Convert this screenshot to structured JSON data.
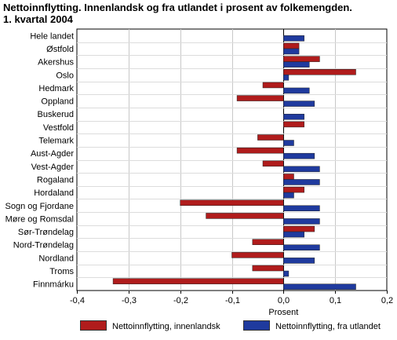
{
  "chart_data": {
    "type": "bar",
    "orientation": "horizontal",
    "title_lines": [
      "Nettoinnflytting. Innenlandsk og fra utlandet i prosent av folkemengden.",
      "1. kvartal 2004"
    ],
    "xlabel": "Prosent",
    "ylabel": "",
    "xlim": [
      -0.4,
      0.2
    ],
    "xticks": [
      -0.4,
      -0.3,
      -0.2,
      -0.1,
      0.0,
      0.1,
      0.2
    ],
    "xtick_labels": [
      "-0,4",
      "-0,3",
      "-0,2",
      "-0,1",
      "0,0",
      "0,1",
      "0,2"
    ],
    "grid": "vertical",
    "legend_position": "bottom",
    "categories": [
      "Hele landet",
      "Østfold",
      "Akershus",
      "Oslo",
      "Hedmark",
      "Oppland",
      "Buskerud",
      "Vestfold",
      "Telemark",
      "Aust-Agder",
      "Vest-Agder",
      "Rogaland",
      "Hordaland",
      "Sogn og Fjordane",
      "Møre og Romsdal",
      "Sør-Trøndelag",
      "Nord-Trøndelag",
      "Nordland",
      "Troms",
      "Finnmárku"
    ],
    "series": [
      {
        "name": "Nettoinnflytting, innenlandsk",
        "color": "#b01c1c",
        "values": [
          0.0,
          0.03,
          0.07,
          0.14,
          -0.04,
          -0.09,
          0.0,
          0.04,
          -0.05,
          -0.09,
          -0.04,
          0.02,
          0.04,
          -0.2,
          -0.15,
          0.06,
          -0.06,
          -0.1,
          -0.06,
          -0.33
        ]
      },
      {
        "name": "Nettoinnflytting, fra utlandet",
        "color": "#1f3a9e",
        "values": [
          0.04,
          0.03,
          0.05,
          0.01,
          0.05,
          0.06,
          0.04,
          0.0,
          0.02,
          0.06,
          0.07,
          0.07,
          0.02,
          0.07,
          0.07,
          0.04,
          0.07,
          0.06,
          0.01,
          0.14
        ]
      }
    ]
  }
}
